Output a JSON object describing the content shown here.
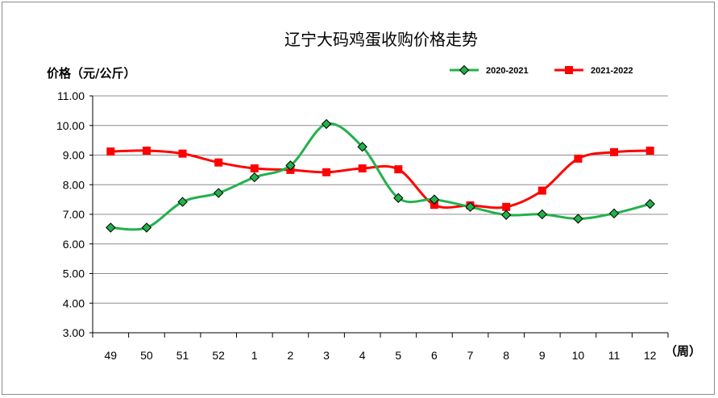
{
  "chart_data": {
    "type": "line",
    "title": "辽宁大码鸡蛋收购价格走势",
    "ylabel": "价格（元/公斤）",
    "xlabel": "（周）",
    "categories": [
      "49",
      "50",
      "51",
      "52",
      "1",
      "2",
      "3",
      "4",
      "5",
      "6",
      "7",
      "8",
      "9",
      "10",
      "11",
      "12"
    ],
    "ylim": [
      3.0,
      11.0
    ],
    "ytick_values": [
      3.0,
      4.0,
      5.0,
      6.0,
      7.0,
      8.0,
      9.0,
      10.0,
      11.0
    ],
    "ytick_labels": [
      "3.00",
      "4.00",
      "5.00",
      "6.00",
      "7.00",
      "8.00",
      "9.00",
      "10.00",
      "11.00"
    ],
    "grid": true,
    "legend_position": "top-right",
    "series": [
      {
        "name": "2020-2021",
        "color": "#22b14c",
        "marker": "diamond",
        "values": [
          6.55,
          6.55,
          7.42,
          7.72,
          8.25,
          8.65,
          10.05,
          9.28,
          7.55,
          7.5,
          7.25,
          6.98,
          7.0,
          6.85,
          7.03,
          7.35
        ]
      },
      {
        "name": "2021-2022",
        "color": "#ff0000",
        "marker": "square",
        "values": [
          9.12,
          9.15,
          9.05,
          8.75,
          8.55,
          8.5,
          8.42,
          8.55,
          8.52,
          7.32,
          7.3,
          7.25,
          7.8,
          8.88,
          9.1,
          9.15
        ]
      }
    ]
  }
}
